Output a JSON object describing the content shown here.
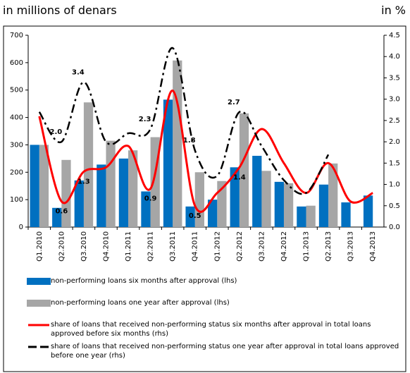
{
  "chart_data": {
    "type": "bar-line",
    "left_axis_label": "in millions of denars",
    "right_axis_label": "in %",
    "categories": [
      "Q1.2010",
      "Q2.2010",
      "Q3.2010",
      "Q4.2010",
      "Q1.2011",
      "Q2.2011",
      "Q3.2011",
      "Q4.2011",
      "Q1.2012",
      "Q2.2012",
      "Q3.2012",
      "Q4.2012",
      "Q1.2013",
      "Q2.2013",
      "Q3.2013",
      "Q4.2013"
    ],
    "series": [
      {
        "name": "non-performing loans six months after approval (lhs)",
        "color": "#0070c0",
        "kind": "bar",
        "values": [
          300,
          70,
          170,
          228,
          250,
          130,
          465,
          75,
          100,
          218,
          260,
          165,
          75,
          155,
          90,
          115
        ]
      },
      {
        "name": "non-performing loans one year after approval (lhs)",
        "color": "#a6a6a6",
        "kind": "bar",
        "values": [
          300,
          245,
          455,
          315,
          280,
          328,
          608,
          200,
          168,
          415,
          205,
          160,
          78,
          232,
          null,
          null
        ]
      },
      {
        "name": "share of loans that received non-performing status six months after approval in total loans approved before six months (rhs)",
        "color": "#ff0000",
        "kind": "line",
        "dash": "solid",
        "axis": "y2",
        "values": [
          2.6,
          0.6,
          1.3,
          1.4,
          1.9,
          0.9,
          3.2,
          0.5,
          0.8,
          1.4,
          2.3,
          1.5,
          0.8,
          1.5,
          0.6,
          0.8
        ],
        "value_labels": [
          null,
          "0.6",
          "1.3",
          null,
          null,
          "0.9",
          null,
          "0.5",
          null,
          "1.4",
          null,
          null,
          null,
          null,
          null,
          null
        ]
      },
      {
        "name": "share of loans that received non-performing status one year after approval in total loans approved before one year (rhs)",
        "color": "#000000",
        "kind": "line",
        "dash": "dashdot",
        "axis": "y2",
        "values": [
          2.7,
          2.0,
          3.4,
          2.0,
          2.2,
          2.3,
          4.2,
          1.8,
          1.2,
          2.7,
          1.9,
          1.1,
          0.8,
          1.7,
          null,
          null
        ],
        "value_labels": [
          null,
          "2.0",
          "3.4",
          null,
          null,
          "2.3",
          null,
          "1.8",
          null,
          "2.7",
          null,
          null,
          null,
          null,
          null,
          null
        ]
      }
    ],
    "ylim": [
      0,
      700
    ],
    "yticks": [
      0,
      100,
      200,
      300,
      400,
      500,
      600,
      700
    ],
    "y2lim": [
      0,
      4.5
    ],
    "y2ticks": [
      {
        "value": 0,
        "label": "0.0"
      },
      {
        "value": 0.5,
        "label": "0.5"
      },
      {
        "value": 1,
        "label": "1.0"
      },
      {
        "value": 1.5,
        "label": "1.5"
      },
      {
        "value": 2,
        "label": "2.0"
      },
      {
        "value": 2.5,
        "label": "2.5"
      },
      {
        "value": 3,
        "label": "3.0"
      },
      {
        "value": 3.5,
        "label": "3.5"
      },
      {
        "value": 4,
        "label": "4.0"
      },
      {
        "value": 4.5,
        "label": "4.5"
      }
    ]
  }
}
